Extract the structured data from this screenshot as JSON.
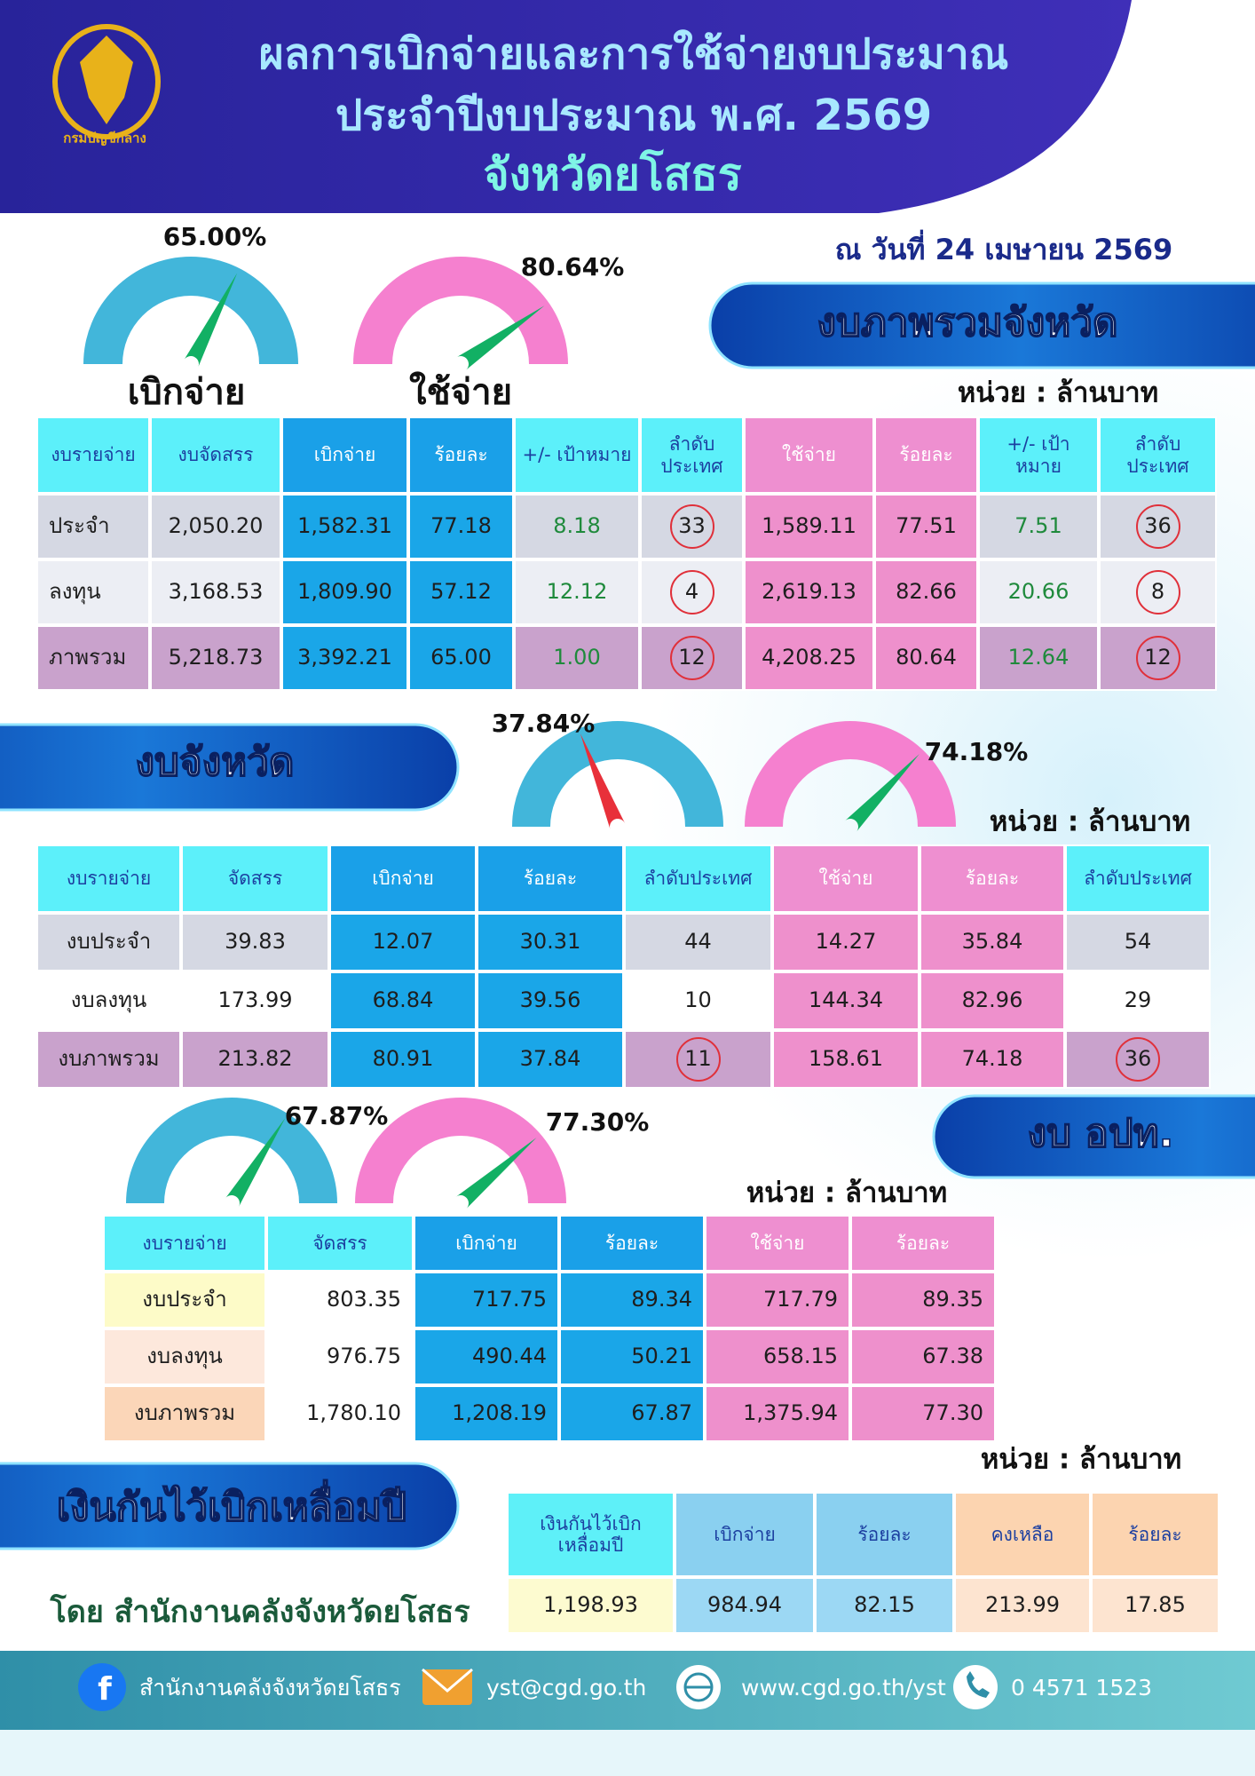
{
  "header": {
    "logo_text": "กรมบัญชีกลาง",
    "title_lines": [
      "ผลการเบิกจ่ายและการใช้จ่ายงบประมาณ",
      "ประจำปีงบประมาณ พ.ศ. 2569",
      "จังหวัดยโสธร"
    ],
    "date": "ณ วันที่ 24 เมษายน 2569"
  },
  "sections": [
    {
      "title": "งบภาพรวมจังหวัด",
      "unit": "หน่วย : ล้านบาท",
      "gauges": [
        {
          "value": 65,
          "label": "65.00%",
          "caption": "เบิกจ่าย",
          "color": "#42b6da",
          "needle_color": "#12b064"
        },
        {
          "value": 80.64,
          "label": "80.64%",
          "caption": "ใช้จ่าย",
          "color": "#f580cf",
          "needle_color": "#12b064"
        }
      ],
      "table": {
        "columns": [
          "งบรายจ่าย",
          "งบจัดสรร",
          "เบิกจ่าย",
          "ร้อยละ",
          "+/- เป้าหมาย",
          "ลำดับประเทศ",
          "ใช้จ่าย",
          "ร้อยละ",
          "+/- เป้าหมาย",
          "ลำดับประเทศ"
        ],
        "rows": [
          [
            "ประจำ",
            "2,050.20",
            "1,582.31",
            "77.18",
            "8.18",
            "33",
            "1,589.11",
            "77.51",
            "7.51",
            "36"
          ],
          [
            "ลงทุน",
            "3,168.53",
            "1,809.90",
            "57.12",
            "12.12",
            "4",
            "2,619.13",
            "82.66",
            "20.66",
            "8"
          ],
          [
            "ภาพรวม",
            "5,218.73",
            "3,392.21",
            "65.00",
            "1.00",
            "12",
            "4,208.25",
            "80.64",
            "12.64",
            "12"
          ]
        ]
      }
    },
    {
      "title": "งบจังหวัด",
      "unit": "หน่วย : ล้านบาท",
      "gauges": [
        {
          "value": 37.84,
          "label": "37.84%",
          "color": "#42b6da",
          "needle_color": "#e8303a"
        },
        {
          "value": 74.18,
          "label": "74.18%",
          "color": "#f580cf",
          "needle_color": "#12b064"
        }
      ],
      "table": {
        "columns": [
          "งบรายจ่าย",
          "จัดสรร",
          "เบิกจ่าย",
          "ร้อยละ",
          "ลำดับประเทศ",
          "ใช้จ่าย",
          "ร้อยละ",
          "ลำดับประเทศ"
        ],
        "rows": [
          [
            "งบประจำ",
            "39.83",
            "12.07",
            "30.31",
            "44",
            "14.27",
            "35.84",
            "54"
          ],
          [
            "งบลงทุน",
            "173.99",
            "68.84",
            "39.56",
            "10",
            "144.34",
            "82.96",
            "29"
          ],
          [
            "งบภาพรวม",
            "213.82",
            "80.91",
            "37.84",
            "11",
            "158.61",
            "74.18",
            "36"
          ]
        ]
      }
    },
    {
      "title": "งบ อปท.",
      "unit": "หน่วย : ล้านบาท",
      "gauges": [
        {
          "value": 67.87,
          "label": "67.87%",
          "color": "#42b6da",
          "needle_color": "#12b064"
        },
        {
          "value": 77.3,
          "label": "77.30%",
          "color": "#f580cf",
          "needle_color": "#12b064"
        }
      ],
      "table": {
        "columns": [
          "งบรายจ่าย",
          "จัดสรร",
          "เบิกจ่าย",
          "ร้อยละ",
          "ใช้จ่าย",
          "ร้อยละ"
        ],
        "rows": [
          [
            "งบประจำ",
            "803.35",
            "717.75",
            "89.34",
            "717.79",
            "89.35"
          ],
          [
            "งบลงทุน",
            "976.75",
            "490.44",
            "50.21",
            "658.15",
            "67.38"
          ],
          [
            "งบภาพรวม",
            "1,780.10",
            "1,208.19",
            "67.87",
            "1,375.94",
            "77.30"
          ]
        ]
      }
    },
    {
      "title": "เงินกันไว้เบิกเหลื่อมปี",
      "unit": "หน่วย : ล้านบาท",
      "table": {
        "columns": [
          "เงินกันไว้เบิกเหลื่อมปี",
          "เบิกจ่าย",
          "ร้อยละ",
          "คงเหลือ",
          "ร้อยละ"
        ],
        "rows": [
          [
            "1,198.93",
            "984.94",
            "82.15",
            "213.99",
            "17.85"
          ]
        ]
      }
    }
  ],
  "credit": "โดย สำนักงานคลังจังหวัดยโสธร",
  "footer": {
    "facebook": "สำนักงานคลังจังหวัดยโสธร",
    "email": "yst@cgd.go.th",
    "website": "www.cgd.go.th/yst",
    "phone": "0 4571 1523"
  }
}
